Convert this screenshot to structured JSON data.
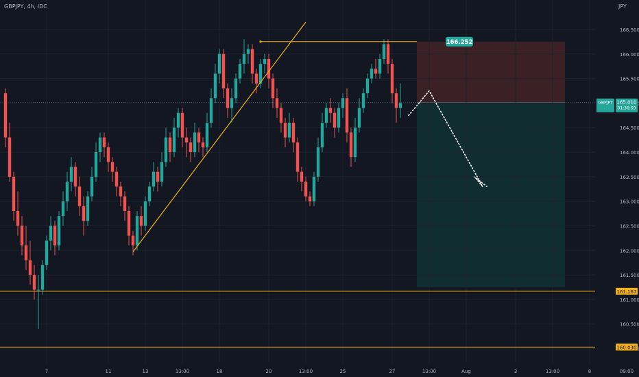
{
  "header": {
    "title": "GBPJPY, 4h, IDC"
  },
  "colors": {
    "background": "#131722",
    "up": "#26a69a",
    "down": "#ef5350",
    "trendline": "#f2b01e",
    "axis_text": "#b2b5be",
    "stop_zone": "#3b2125",
    "target_zone": "#102e31"
  },
  "chart_data": {
    "type": "candlestick",
    "symbol": "GBPJPY",
    "timeframe": "4h",
    "source": "IDC",
    "y_unit": "JPY",
    "ylim": [
      159.7,
      167.1
    ],
    "y_ticks": [
      "166.500",
      "166.000",
      "165.500",
      "165.000",
      "164.500",
      "164.000",
      "163.500",
      "163.000",
      "162.500",
      "162.000",
      "161.500",
      "161.000",
      "160.500",
      "160.000"
    ],
    "x_ticks": [
      {
        "label": "7",
        "i": 10
      },
      {
        "label": "11",
        "i": 25
      },
      {
        "label": "13",
        "i": 34
      },
      {
        "label": "13:00",
        "i": 43
      },
      {
        "label": "18",
        "i": 52
      },
      {
        "label": "20",
        "i": 64
      },
      {
        "label": "13:00",
        "i": 73
      },
      {
        "label": "25",
        "i": 82
      },
      {
        "label": "27",
        "i": 94
      },
      {
        "label": "13:00",
        "i": 103
      },
      {
        "label": "Aug",
        "i": 112
      },
      {
        "label": "3",
        "i": 124
      },
      {
        "label": "13:00",
        "i": 133
      },
      {
        "label": "8",
        "i": 142
      },
      {
        "label": "09:00",
        "i": 151
      }
    ],
    "candles": [
      [
        165.2,
        165.3,
        164.1,
        164.3
      ],
      [
        164.3,
        164.6,
        163.4,
        163.5
      ],
      [
        163.5,
        163.6,
        162.6,
        162.8
      ],
      [
        162.8,
        163.2,
        162.3,
        162.5
      ],
      [
        162.5,
        162.7,
        161.9,
        162.1
      ],
      [
        162.1,
        162.5,
        161.6,
        161.8
      ],
      [
        161.8,
        162.2,
        161.3,
        161.5
      ],
      [
        161.5,
        161.7,
        161.0,
        161.2
      ],
      [
        161.2,
        161.5,
        160.4,
        161.2
      ],
      [
        161.2,
        161.8,
        161.1,
        161.7
      ],
      [
        161.7,
        162.3,
        161.6,
        162.2
      ],
      [
        162.2,
        162.7,
        162.0,
        162.5
      ],
      [
        162.5,
        162.6,
        161.9,
        162.1
      ],
      [
        162.1,
        162.8,
        162.0,
        162.7
      ],
      [
        162.7,
        163.2,
        162.5,
        163.0
      ],
      [
        163.0,
        163.6,
        162.8,
        163.4
      ],
      [
        163.4,
        163.9,
        163.2,
        163.7
      ],
      [
        163.7,
        163.8,
        163.1,
        163.3
      ],
      [
        163.3,
        163.5,
        162.7,
        162.9
      ],
      [
        162.9,
        163.1,
        162.3,
        162.6
      ],
      [
        162.6,
        163.2,
        162.5,
        163.1
      ],
      [
        163.1,
        163.7,
        163.0,
        163.5
      ],
      [
        163.5,
        164.2,
        163.4,
        164.0
      ],
      [
        164.0,
        164.4,
        163.8,
        164.3
      ],
      [
        164.3,
        164.4,
        163.9,
        164.1
      ],
      [
        164.1,
        164.2,
        163.6,
        163.8
      ],
      [
        163.8,
        163.9,
        163.4,
        163.6
      ],
      [
        163.6,
        163.7,
        163.1,
        163.3
      ],
      [
        163.3,
        163.4,
        162.9,
        163.1
      ],
      [
        163.1,
        163.2,
        162.6,
        162.8
      ],
      [
        162.8,
        162.9,
        162.1,
        162.3
      ],
      [
        162.3,
        162.4,
        161.9,
        162.1
      ],
      [
        162.1,
        162.8,
        162.0,
        162.7
      ],
      [
        162.7,
        162.9,
        162.3,
        162.5
      ],
      [
        162.5,
        163.1,
        162.4,
        163.0
      ],
      [
        163.0,
        163.4,
        162.9,
        163.3
      ],
      [
        163.3,
        163.8,
        163.2,
        163.6
      ],
      [
        163.6,
        163.7,
        163.2,
        163.4
      ],
      [
        163.4,
        164.0,
        163.3,
        163.8
      ],
      [
        163.8,
        164.5,
        163.7,
        164.3
      ],
      [
        164.3,
        164.4,
        163.8,
        164.0
      ],
      [
        164.0,
        164.7,
        163.9,
        164.5
      ],
      [
        164.5,
        164.9,
        164.3,
        164.8
      ],
      [
        164.8,
        164.9,
        164.1,
        164.3
      ],
      [
        164.3,
        164.5,
        163.9,
        164.2
      ],
      [
        164.2,
        164.3,
        163.8,
        164.0
      ],
      [
        164.0,
        164.6,
        163.9,
        164.4
      ],
      [
        164.4,
        164.5,
        164.0,
        164.2
      ],
      [
        164.2,
        164.3,
        163.9,
        164.1
      ],
      [
        164.1,
        164.8,
        164.0,
        164.6
      ],
      [
        164.6,
        165.3,
        164.5,
        165.1
      ],
      [
        165.1,
        165.8,
        165.0,
        165.6
      ],
      [
        165.6,
        166.1,
        165.4,
        166.0
      ],
      [
        166.0,
        166.1,
        165.1,
        165.3
      ],
      [
        165.3,
        165.4,
        164.7,
        164.9
      ],
      [
        164.9,
        165.3,
        164.6,
        165.1
      ],
      [
        165.1,
        165.6,
        165.0,
        165.5
      ],
      [
        165.5,
        165.9,
        165.4,
        165.8
      ],
      [
        165.8,
        166.3,
        165.6,
        166.0
      ],
      [
        166.0,
        166.2,
        165.8,
        166.1
      ],
      [
        166.1,
        166.2,
        165.4,
        165.6
      ],
      [
        165.6,
        165.7,
        165.2,
        165.4
      ],
      [
        165.4,
        165.9,
        165.3,
        165.8
      ],
      [
        165.8,
        166.0,
        165.6,
        165.9
      ],
      [
        165.9,
        166.0,
        165.3,
        165.5
      ],
      [
        165.5,
        165.6,
        164.9,
        165.1
      ],
      [
        165.1,
        165.3,
        164.7,
        164.9
      ],
      [
        164.9,
        165.0,
        164.4,
        164.6
      ],
      [
        164.6,
        164.7,
        164.1,
        164.3
      ],
      [
        164.3,
        164.8,
        164.2,
        164.6
      ],
      [
        164.6,
        164.7,
        164.0,
        164.2
      ],
      [
        164.2,
        164.3,
        163.4,
        163.6
      ],
      [
        163.6,
        163.7,
        163.2,
        163.4
      ],
      [
        163.4,
        163.5,
        163.0,
        163.1
      ],
      [
        163.1,
        163.2,
        162.9,
        163.0
      ],
      [
        163.0,
        163.6,
        162.9,
        163.5
      ],
      [
        163.5,
        164.3,
        163.4,
        164.1
      ],
      [
        164.1,
        164.8,
        164.0,
        164.6
      ],
      [
        164.6,
        165.0,
        164.5,
        164.9
      ],
      [
        164.9,
        165.1,
        164.6,
        164.8
      ],
      [
        164.8,
        164.9,
        164.3,
        164.5
      ],
      [
        164.5,
        165.0,
        164.4,
        164.9
      ],
      [
        164.9,
        165.2,
        164.7,
        165.1
      ],
      [
        165.1,
        165.3,
        164.2,
        164.4
      ],
      [
        164.4,
        164.5,
        163.7,
        163.9
      ],
      [
        163.9,
        164.7,
        163.8,
        164.5
      ],
      [
        164.5,
        165.1,
        164.4,
        164.9
      ],
      [
        164.9,
        165.3,
        164.8,
        165.2
      ],
      [
        165.2,
        165.6,
        165.1,
        165.5
      ],
      [
        165.5,
        165.8,
        165.4,
        165.7
      ],
      [
        165.7,
        165.9,
        165.5,
        165.6
      ],
      [
        165.6,
        166.0,
        165.5,
        165.9
      ],
      [
        165.9,
        166.3,
        165.8,
        166.2
      ],
      [
        166.2,
        166.3,
        165.6,
        165.8
      ],
      [
        165.8,
        165.9,
        165.0,
        165.2
      ],
      [
        165.2,
        165.3,
        164.6,
        164.9
      ],
      [
        164.9,
        165.4,
        164.7,
        165.0
      ]
    ],
    "horizontal_levels": [
      {
        "price": 161.167,
        "label": "161.167"
      },
      {
        "price": 160.03,
        "label": "160.030"
      }
    ],
    "current_price": {
      "price": 165.01,
      "label": "165.010",
      "countdown": "01:36:59",
      "symbol": "GBPJPY"
    },
    "position": {
      "entry": 165.01,
      "stop": 166.252,
      "stop_label": "166.252",
      "target": 161.25,
      "start_i": 100,
      "end_i": 136
    },
    "high_marker": {
      "price": 166.252,
      "from_i": 62,
      "to_i": 100
    },
    "trendline": {
      "from": {
        "i": 31,
        "price": 161.97
      },
      "to": {
        "i": 73,
        "price": 166.65
      }
    },
    "projection": [
      {
        "i": 98,
        "price": 164.75
      },
      {
        "i": 103,
        "price": 165.25
      },
      {
        "i": 116,
        "price": 163.3
      },
      {
        "i": 114,
        "price": 163.5
      },
      {
        "i": 117,
        "price": 163.3
      }
    ]
  }
}
